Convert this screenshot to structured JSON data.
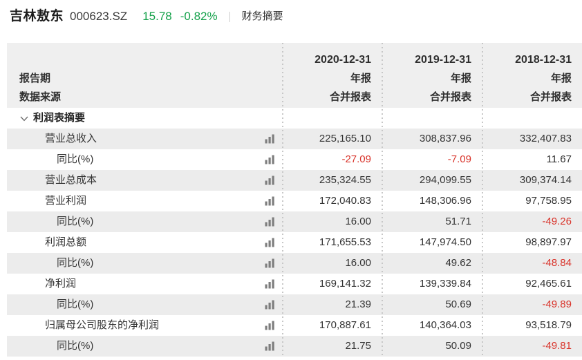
{
  "top_bar": {
    "stock_name": "吉林敖东",
    "stock_code": "000623.SZ",
    "price": "15.78",
    "change": "-0.82%",
    "page_title": "财务摘要"
  },
  "table": {
    "header": {
      "row_label_1": "报告期",
      "row_label_2": "数据来源",
      "columns": [
        {
          "date": "2020-12-31",
          "period": "年报",
          "source": "合并报表"
        },
        {
          "date": "2019-12-31",
          "period": "年报",
          "source": "合并报表"
        },
        {
          "date": "2018-12-31",
          "period": "年报",
          "source": "合并报表"
        }
      ]
    },
    "section": {
      "label": "利润表摘要",
      "icon": "chevron-down-icon"
    },
    "row_icon": "bar-chart-icon",
    "rows": [
      {
        "label": "营业总收入",
        "indent": 1,
        "values": [
          "225,165.10",
          "308,837.96",
          "332,407.83"
        ]
      },
      {
        "label": "同比(%)",
        "indent": 2,
        "values": [
          "-27.09",
          "-7.09",
          "11.67"
        ]
      },
      {
        "label": "营业总成本",
        "indent": 1,
        "values": [
          "235,324.55",
          "294,099.55",
          "309,374.14"
        ]
      },
      {
        "label": "营业利润",
        "indent": 1,
        "values": [
          "172,040.83",
          "148,306.96",
          "97,758.95"
        ]
      },
      {
        "label": "同比(%)",
        "indent": 2,
        "values": [
          "16.00",
          "51.71",
          "-49.26"
        ]
      },
      {
        "label": "利润总额",
        "indent": 1,
        "values": [
          "171,655.53",
          "147,974.50",
          "98,897.97"
        ]
      },
      {
        "label": "同比(%)",
        "indent": 2,
        "values": [
          "16.00",
          "49.62",
          "-48.84"
        ]
      },
      {
        "label": "净利润",
        "indent": 1,
        "values": [
          "169,141.32",
          "139,339.84",
          "92,465.61"
        ]
      },
      {
        "label": "同比(%)",
        "indent": 2,
        "values": [
          "21.39",
          "50.69",
          "-49.89"
        ]
      },
      {
        "label": "归属母公司股东的净利润",
        "indent": 1,
        "values": [
          "170,887.61",
          "140,364.03",
          "93,518.79"
        ]
      },
      {
        "label": "同比(%)",
        "indent": 2,
        "values": [
          "21.75",
          "50.09",
          "-49.81"
        ]
      }
    ]
  },
  "colors": {
    "positive_green": "#14a14a",
    "negative_red": "#d9342b",
    "header_bg": "#efefef",
    "row_alt_bg": "#ececec",
    "text_dark": "#333333"
  }
}
